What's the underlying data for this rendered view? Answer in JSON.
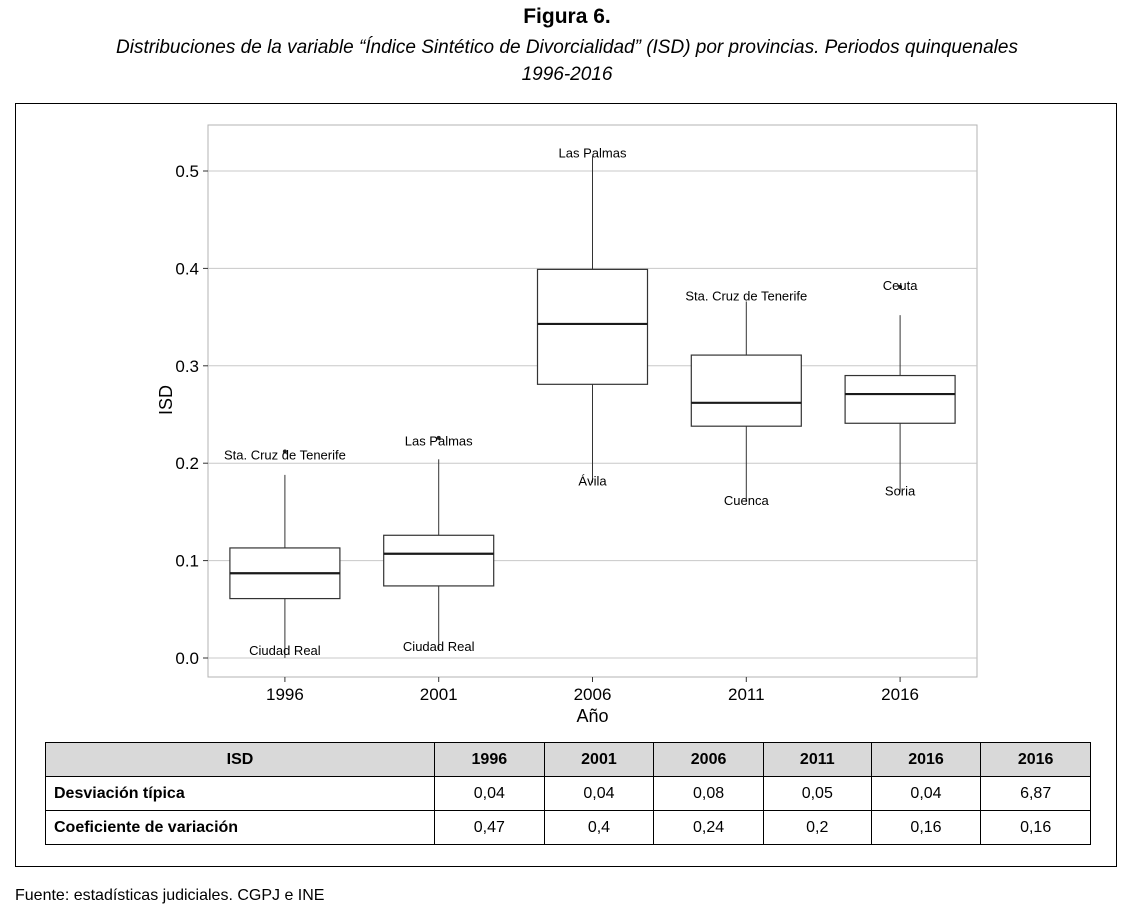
{
  "figure": {
    "label": "Figura 6.",
    "title_line1": "Distribuciones de la variable “Índice Sintético de Divorcialidad” (ISD) por provincias. Periodos quinquenales",
    "title_line2": "1996-2016"
  },
  "chart_data": {
    "type": "boxplot",
    "xlabel": "Año",
    "ylabel": "ISD",
    "ylim": [
      -0.02,
      0.55
    ],
    "yticks": [
      0.0,
      0.1,
      0.2,
      0.3,
      0.4,
      0.5
    ],
    "ytick_labels": [
      "0.0",
      "0.1",
      "0.2",
      "0.3",
      "0.4",
      "0.5"
    ],
    "grid": true,
    "categories": [
      "1996",
      "2001",
      "2006",
      "2011",
      "2016"
    ],
    "boxes": [
      {
        "category": "1996",
        "whisker_low": 0.0,
        "q1": 0.061,
        "median": 0.087,
        "q3": 0.113,
        "whisker_high": 0.188
      },
      {
        "category": "2001",
        "whisker_low": 0.008,
        "q1": 0.074,
        "median": 0.107,
        "q3": 0.126,
        "whisker_high": 0.204
      },
      {
        "category": "2006",
        "whisker_low": 0.18,
        "q1": 0.281,
        "median": 0.343,
        "q3": 0.399,
        "whisker_high": 0.515
      },
      {
        "category": "2011",
        "whisker_low": 0.16,
        "q1": 0.238,
        "median": 0.262,
        "q3": 0.311,
        "whisker_high": 0.366
      },
      {
        "category": "2016",
        "whisker_low": 0.17,
        "q1": 0.241,
        "median": 0.271,
        "q3": 0.29,
        "whisker_high": 0.352
      }
    ],
    "outliers": [
      {
        "category": "1996",
        "value": 0.212
      },
      {
        "category": "2001",
        "value": 0.226
      },
      {
        "category": "2016",
        "value": 0.381
      }
    ],
    "annotations": [
      {
        "category": "1996",
        "value": 0.204,
        "text": "Sta. Cruz de Tenerife"
      },
      {
        "category": "1996",
        "value": 0.003,
        "text": "Ciudad Real"
      },
      {
        "category": "2001",
        "value": 0.218,
        "text": "Las Palmas"
      },
      {
        "category": "2001",
        "value": 0.007,
        "text": "Ciudad Real"
      },
      {
        "category": "2006",
        "value": 0.514,
        "text": "Las Palmas"
      },
      {
        "category": "2006",
        "value": 0.177,
        "text": "Ávila"
      },
      {
        "category": "2011",
        "value": 0.367,
        "text": "Sta. Cruz de Tenerife"
      },
      {
        "category": "2011",
        "value": 0.157,
        "text": "Cuenca"
      },
      {
        "category": "2016",
        "value": 0.378,
        "text": "Ceuta"
      },
      {
        "category": "2016",
        "value": 0.167,
        "text": "Soria"
      }
    ]
  },
  "table": {
    "headers": [
      "ISD",
      "1996",
      "2001",
      "2006",
      "2011",
      "2016",
      "2016"
    ],
    "rows": [
      {
        "label": "Desviación típica",
        "values": [
          "0,04",
          "0,04",
          "0,08",
          "0,05",
          "0,04",
          "6,87"
        ]
      },
      {
        "label": "Coeficiente de variación",
        "values": [
          "0,47",
          "0,4",
          "0,24",
          "0,2",
          "0,16",
          "0,16"
        ]
      }
    ]
  },
  "source": "Fuente: estadísticas judiciales. CGPJ e INE"
}
